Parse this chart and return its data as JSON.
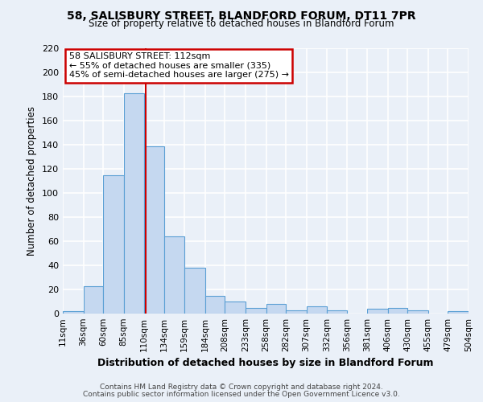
{
  "title": "58, SALISBURY STREET, BLANDFORD FORUM, DT11 7PR",
  "subtitle": "Size of property relative to detached houses in Blandford Forum",
  "xlabel": "Distribution of detached houses by size in Blandford Forum",
  "ylabel": "Number of detached properties",
  "bar_color": "#c5d8f0",
  "bar_edge_color": "#5a9fd4",
  "background_color": "#eaf0f8",
  "grid_color": "#ffffff",
  "bin_edges": [
    11,
    36,
    60,
    85,
    110,
    134,
    159,
    184,
    208,
    233,
    258,
    282,
    307,
    332,
    356,
    381,
    406,
    430,
    455,
    479,
    504
  ],
  "bar_heights": [
    2,
    23,
    115,
    183,
    139,
    64,
    38,
    15,
    10,
    5,
    8,
    3,
    6,
    3,
    0,
    4,
    5,
    3,
    0,
    2
  ],
  "tick_labels": [
    "11sqm",
    "36sqm",
    "60sqm",
    "85sqm",
    "110sqm",
    "134sqm",
    "159sqm",
    "184sqm",
    "208sqm",
    "233sqm",
    "258sqm",
    "282sqm",
    "307sqm",
    "332sqm",
    "356sqm",
    "381sqm",
    "406sqm",
    "430sqm",
    "455sqm",
    "479sqm",
    "504sqm"
  ],
  "ylim": [
    0,
    220
  ],
  "yticks": [
    0,
    20,
    40,
    60,
    80,
    100,
    120,
    140,
    160,
    180,
    200,
    220
  ],
  "property_size": 112,
  "vline_color": "#cc0000",
  "annotation_box_color": "#cc0000",
  "annotation_lines": [
    "58 SALISBURY STREET: 112sqm",
    "← 55% of detached houses are smaller (335)",
    "45% of semi-detached houses are larger (275) →"
  ],
  "footer1": "Contains HM Land Registry data © Crown copyright and database right 2024.",
  "footer2": "Contains public sector information licensed under the Open Government Licence v3.0."
}
